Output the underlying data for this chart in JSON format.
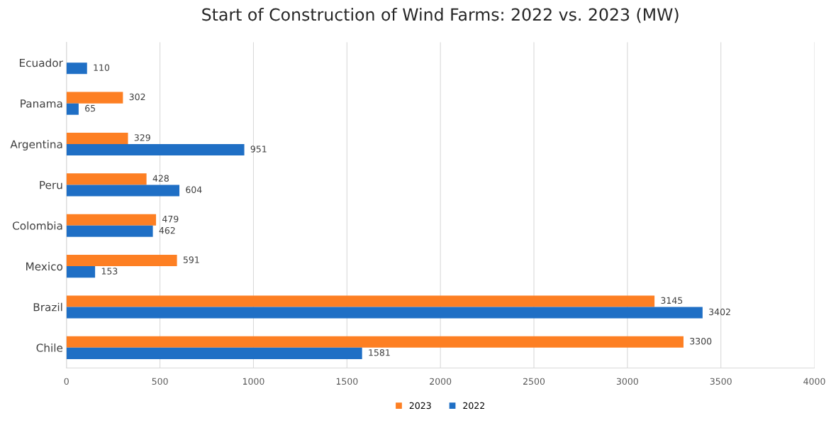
{
  "chart_data": {
    "type": "bar",
    "orientation": "horizontal",
    "title": "Start of Construction of Wind Farms: 2022 vs. 2023 (MW)",
    "categories": [
      "Ecuador",
      "Panama",
      "Argentina",
      "Peru",
      "Colombia",
      "Mexico",
      "Brazil",
      "Chile"
    ],
    "series": [
      {
        "name": "2023",
        "color": "#fd7f23",
        "values": [
          null,
          302,
          329,
          428,
          479,
          591,
          3145,
          3300
        ]
      },
      {
        "name": "2022",
        "color": "#1f6fc5",
        "values": [
          110,
          65,
          951,
          604,
          462,
          153,
          3402,
          1581
        ]
      }
    ],
    "xlim": [
      0,
      4000
    ],
    "xticks": [
      0,
      500,
      1000,
      1500,
      2000,
      2500,
      3000,
      3500,
      4000
    ],
    "grid": "x",
    "legend": "bottom",
    "data_labels": true
  }
}
